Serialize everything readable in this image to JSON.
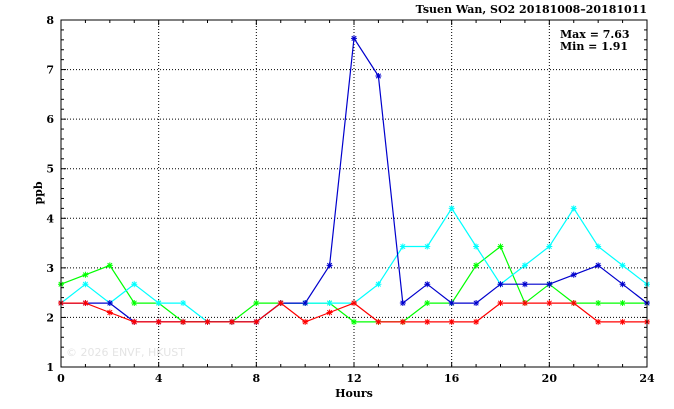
{
  "chart_data": {
    "type": "line",
    "title": "Tsuen Wan, SO2 20181008–20181011",
    "xlabel": "Hours",
    "ylabel": "ppb",
    "xlim": [
      0,
      24
    ],
    "ylim": [
      1,
      8
    ],
    "xticks": [
      0,
      4,
      8,
      12,
      16,
      20,
      24
    ],
    "yticks": [
      1,
      2,
      3,
      4,
      5,
      6,
      7,
      8
    ],
    "grid": true,
    "max_label": "Max = 7.63",
    "min_label": "Min = 1.91",
    "watermark": "© 2026 ENVF, HKUST",
    "x": [
      0,
      1,
      2,
      3,
      4,
      5,
      6,
      7,
      8,
      9,
      10,
      11,
      12,
      13,
      14,
      15,
      16,
      17,
      18,
      19,
      20,
      21,
      22,
      23,
      24
    ],
    "series": [
      {
        "color": "#00ff00",
        "values": [
          2.67,
          2.86,
          3.05,
          2.29,
          2.29,
          1.91,
          1.91,
          1.91,
          2.29,
          2.29,
          2.29,
          2.29,
          1.91,
          1.91,
          1.91,
          2.29,
          2.29,
          3.05,
          3.43,
          2.29,
          2.67,
          2.29,
          2.29,
          2.29,
          2.29
        ]
      },
      {
        "color": "#00ffff",
        "values": [
          2.29,
          2.67,
          2.29,
          2.67,
          2.29,
          2.29,
          1.91,
          1.91,
          1.91,
          2.29,
          2.29,
          2.29,
          2.29,
          2.67,
          3.43,
          3.43,
          4.2,
          3.43,
          2.67,
          3.05,
          3.43,
          4.2,
          3.43,
          3.05,
          2.67
        ]
      },
      {
        "color": "#0000cd",
        "values": [
          2.29,
          2.29,
          2.29,
          1.91,
          1.91,
          1.91,
          1.91,
          1.91,
          1.91,
          2.29,
          2.29,
          3.05,
          7.63,
          6.87,
          2.29,
          2.67,
          2.29,
          2.29,
          2.67,
          2.67,
          2.67,
          2.86,
          3.05,
          2.67,
          2.29
        ]
      },
      {
        "color": "#ff0000",
        "values": [
          2.29,
          2.29,
          2.1,
          1.91,
          1.91,
          1.91,
          1.91,
          1.91,
          1.91,
          2.29,
          1.91,
          2.1,
          2.29,
          1.91,
          1.91,
          1.91,
          1.91,
          1.91,
          2.29,
          2.29,
          2.29,
          2.29,
          1.91,
          1.91,
          1.91
        ]
      }
    ]
  }
}
